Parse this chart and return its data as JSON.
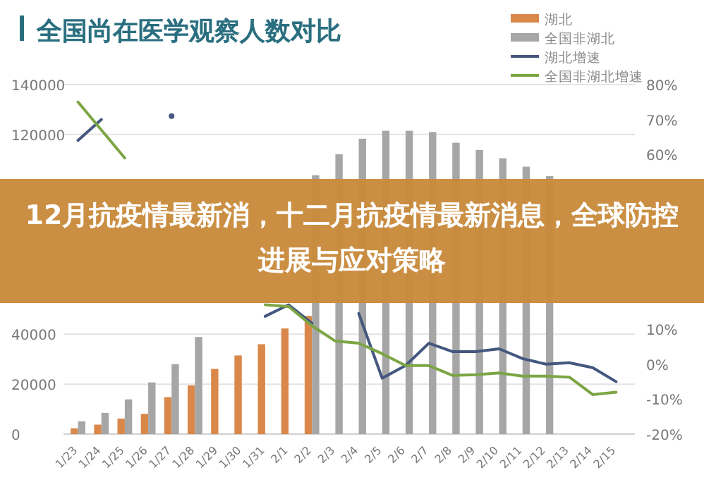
{
  "chart_data": {
    "type": "bar",
    "title": "全国尚在医学观察人数对比",
    "categories": [
      "1/23",
      "1/24",
      "1/25",
      "1/26",
      "1/27",
      "1/28",
      "1/29",
      "1/30",
      "1/31",
      "2/1",
      "2/2",
      "2/3",
      "2/4",
      "2/5",
      "2/6",
      "2/7",
      "2/8",
      "2/9",
      "2/10",
      "2/11",
      "2/12",
      "2/13",
      "2/14",
      "2/15"
    ],
    "series": [
      {
        "name": "湖北",
        "color": "#d9884a",
        "values": [
          2300,
          3800,
          6200,
          8100,
          14800,
          19500,
          26100,
          31500,
          36000,
          42300,
          47300,
          null,
          null,
          null,
          null,
          null,
          null,
          null,
          null,
          null,
          null,
          null,
          null,
          null
        ]
      },
      {
        "name": "全国非湖北",
        "color": "#a6a6a6",
        "values": [
          5100,
          8500,
          13900,
          20700,
          28000,
          38900,
          null,
          null,
          null,
          null,
          103700,
          112100,
          118300,
          121500,
          121500,
          121000,
          116700,
          113800,
          110500,
          107100,
          103300,
          null,
          null,
          null
        ]
      },
      {
        "name": "湖北增速",
        "type": "line",
        "axis": "y2",
        "color": "#44577f",
        "values": [
          64,
          70,
          null,
          null,
          71,
          null,
          null,
          null,
          13.7,
          17,
          11.7,
          null,
          14.5,
          -4,
          -0.4,
          6,
          3.6,
          3.6,
          4.4,
          1.6,
          0,
          0.4,
          -1,
          -5
        ]
      },
      {
        "name": "全国非湖北增速",
        "type": "line",
        "axis": "y2",
        "color": "#7ca545",
        "values": [
          75,
          67,
          59,
          null,
          null,
          null,
          null,
          null,
          17,
          16.5,
          11,
          6.6,
          6,
          3,
          -0.4,
          -0.4,
          -3.2,
          -3,
          -2.5,
          -3.4,
          -3.4,
          -3.7,
          -8.7,
          -8
        ]
      }
    ],
    "ylim": [
      0,
      140000
    ],
    "yticks": [
      0,
      20000,
      40000,
      120000,
      140000
    ],
    "y2lim": [
      -20,
      80
    ],
    "y2ticks": [
      {
        "value": -20,
        "label": "-20%"
      },
      {
        "value": -10,
        "label": "-10%"
      },
      {
        "value": 0,
        "label": "0%"
      },
      {
        "value": 10,
        "label": "10%"
      },
      {
        "value": 60,
        "label": "60%"
      },
      {
        "value": 70,
        "label": "70%"
      },
      {
        "value": 80,
        "label": "80%"
      }
    ],
    "grid": "y",
    "legend": "top right",
    "annotations": [
      "12月抗疫情最新消，十二月抗疫情最新消息，全球防控进展与应对策略"
    ]
  }
}
